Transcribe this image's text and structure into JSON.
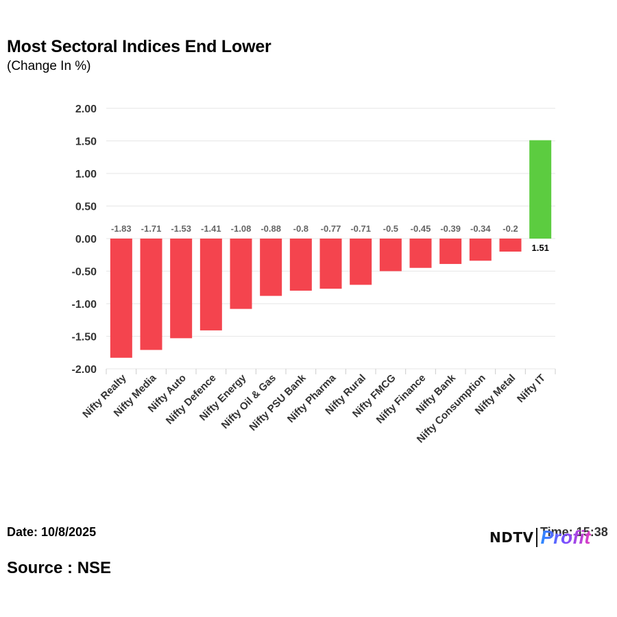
{
  "title": "Most Sectoral Indices End Lower",
  "subtitle": "(Change In %)",
  "footer": {
    "date": "Date: 10/8/2025",
    "source": "Source : NSE",
    "time_text": "Time: 15:38",
    "logo_left": "NDTV",
    "logo_right": "Profit"
  },
  "colors": {
    "negative": "#f4444e",
    "positive": "#5ccc40",
    "grid": "#e6e6e6",
    "tick_label": "#333333",
    "value_label": "#666666"
  },
  "chart_data": {
    "type": "bar",
    "categories": [
      "Nifty Realty",
      "Nifty Media",
      "Nifty Auto",
      "Nifty Defence",
      "Nifty Energy",
      "Nifty Oil & Gas",
      "Nifty PSU Bank",
      "Nifty Pharma",
      "Nifty Rural",
      "Nifty FMCG",
      "Nifty Finance",
      "Nifty Bank",
      "Nifty Consumption",
      "Nifty Metal",
      "Nifty IT"
    ],
    "values": [
      -1.83,
      -1.71,
      -1.53,
      -1.41,
      -1.08,
      -0.88,
      -0.8,
      -0.77,
      -0.71,
      -0.5,
      -0.45,
      -0.39,
      -0.34,
      -0.2,
      1.51
    ],
    "value_labels": [
      "-1.83",
      "-1.71",
      "-1.53",
      "-1.41",
      "-1.08",
      "-0.88",
      "-0.8",
      "-0.77",
      "-0.71",
      "-0.5",
      "-0.45",
      "-0.39",
      "-0.34",
      "-0.2",
      "1.51"
    ],
    "y_ticks": [
      "2.00",
      "1.50",
      "1.00",
      "0.50",
      "0.00",
      "-0.50",
      "-1.00",
      "-1.50",
      "-2.00"
    ],
    "ylim": [
      -2,
      2
    ],
    "grid": true,
    "xlabel": "",
    "ylabel": ""
  }
}
